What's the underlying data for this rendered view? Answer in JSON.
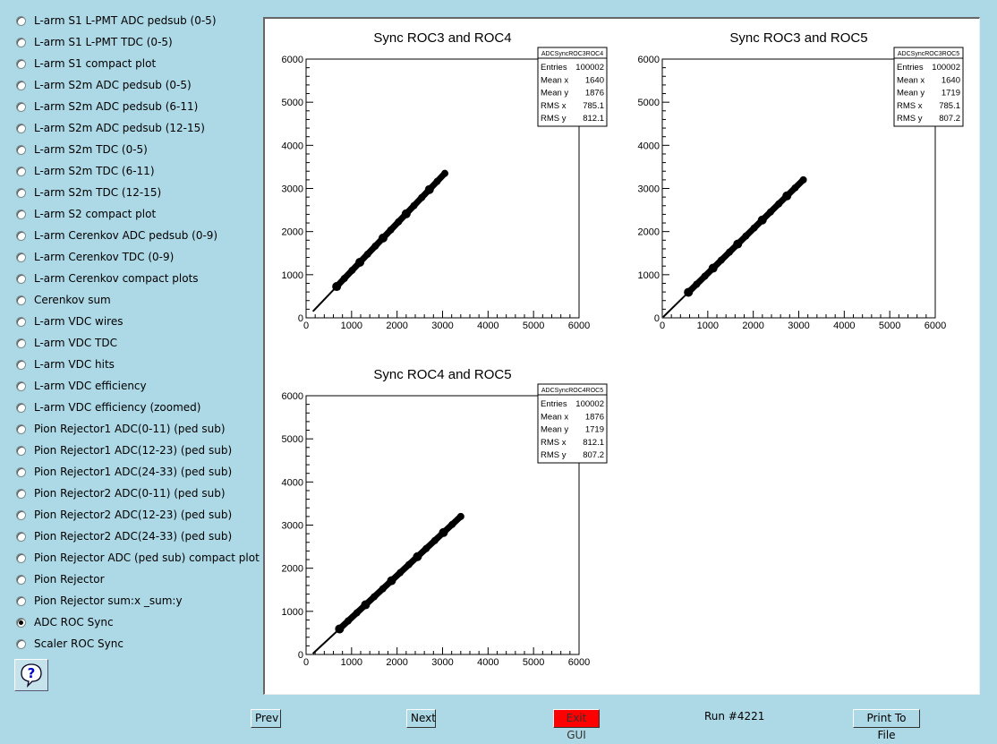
{
  "sidebar": {
    "items": [
      {
        "label": "L-arm S1 L-PMT ADC pedsub (0-5)",
        "checked": false
      },
      {
        "label": "L-arm S1 L-PMT TDC (0-5)",
        "checked": false
      },
      {
        "label": "L-arm S1 compact plot",
        "checked": false
      },
      {
        "label": "L-arm S2m ADC pedsub (0-5)",
        "checked": false
      },
      {
        "label": "L-arm S2m ADC pedsub (6-11)",
        "checked": false
      },
      {
        "label": "L-arm S2m ADC pedsub (12-15)",
        "checked": false
      },
      {
        "label": "L-arm S2m TDC (0-5)",
        "checked": false
      },
      {
        "label": "L-arm S2m TDC (6-11)",
        "checked": false
      },
      {
        "label": "L-arm S2m TDC (12-15)",
        "checked": false
      },
      {
        "label": "L-arm S2 compact plot",
        "checked": false
      },
      {
        "label": "L-arm Cerenkov ADC pedsub (0-9)",
        "checked": false
      },
      {
        "label": "L-arm Cerenkov TDC (0-9)",
        "checked": false
      },
      {
        "label": "L-arm Cerenkov compact plots",
        "checked": false
      },
      {
        "label": "Cerenkov sum",
        "checked": false
      },
      {
        "label": "L-arm VDC wires",
        "checked": false
      },
      {
        "label": "L-arm VDC TDC",
        "checked": false
      },
      {
        "label": "L-arm VDC hits",
        "checked": false
      },
      {
        "label": "L-arm VDC efficiency",
        "checked": false
      },
      {
        "label": "L-arm VDC efficiency (zoomed)",
        "checked": false
      },
      {
        "label": "Pion Rejector1 ADC(0-11) (ped sub)",
        "checked": false
      },
      {
        "label": "Pion Rejector1 ADC(12-23) (ped sub)",
        "checked": false
      },
      {
        "label": "Pion Rejector1 ADC(24-33) (ped sub)",
        "checked": false
      },
      {
        "label": "Pion Rejector2 ADC(0-11) (ped sub)",
        "checked": false
      },
      {
        "label": "Pion Rejector2 ADC(12-23) (ped sub)",
        "checked": false
      },
      {
        "label": "Pion Rejector2 ADC(24-33) (ped sub)",
        "checked": false
      },
      {
        "label": "Pion Rejector ADC (ped sub) compact plot",
        "checked": false
      },
      {
        "label": "Pion Rejector",
        "checked": false
      },
      {
        "label": "Pion Rejector sum:x _sum:y",
        "checked": false
      },
      {
        "label": "ADC ROC Sync",
        "checked": true
      },
      {
        "label": "Scaler ROC Sync",
        "checked": false
      }
    ],
    "help_icon": "question-mark-icon"
  },
  "footer": {
    "prev_label": "Prev",
    "next_label": "Next",
    "exit_label": "Exit GUI",
    "run_label": "Run #4221",
    "print_label": "Print To File",
    "exit_color": "#ff0000"
  },
  "chart_data": [
    {
      "type": "scatter",
      "title": "Sync ROC3 and ROC4",
      "xlim": [
        0,
        6000
      ],
      "ylim": [
        0,
        6000
      ],
      "xticks": [
        "0",
        "1000",
        "2000",
        "3000",
        "4000",
        "5000",
        "6000"
      ],
      "yticks": [
        "0",
        "1000",
        "2000",
        "3000",
        "4000",
        "5000",
        "6000"
      ],
      "series": [
        {
          "x": [
            150,
            3050
          ],
          "y": [
            150,
            3350
          ]
        }
      ],
      "stats": {
        "name": "ADCSyncROC3ROC4",
        "rows": [
          [
            "Entries",
            "100002"
          ],
          [
            "Mean x",
            "1640"
          ],
          [
            "Mean y",
            "1876"
          ],
          [
            "RMS x",
            "785.1"
          ],
          [
            "RMS y",
            "812.1"
          ]
        ]
      }
    },
    {
      "type": "scatter",
      "title": "Sync ROC3 and ROC5",
      "xlim": [
        0,
        6000
      ],
      "ylim": [
        0,
        6000
      ],
      "xticks": [
        "0",
        "1000",
        "2000",
        "3000",
        "4000",
        "5000",
        "6000"
      ],
      "yticks": [
        "0",
        "1000",
        "2000",
        "3000",
        "4000",
        "5000",
        "6000"
      ],
      "series": [
        {
          "x": [
            20,
            3100
          ],
          "y": [
            20,
            3200
          ]
        }
      ],
      "stats": {
        "name": "ADCSyncROC3ROC5",
        "rows": [
          [
            "Entries",
            "100002"
          ],
          [
            "Mean x",
            "1640"
          ],
          [
            "Mean y",
            "1719"
          ],
          [
            "RMS x",
            "785.1"
          ],
          [
            "RMS y",
            "807.2"
          ]
        ]
      }
    },
    {
      "type": "scatter",
      "title": "Sync ROC4 and ROC5",
      "xlim": [
        0,
        6000
      ],
      "ylim": [
        0,
        6000
      ],
      "xticks": [
        "0",
        "1000",
        "2000",
        "3000",
        "4000",
        "5000",
        "6000"
      ],
      "yticks": [
        "0",
        "1000",
        "2000",
        "3000",
        "4000",
        "5000",
        "6000"
      ],
      "series": [
        {
          "x": [
            150,
            3400
          ],
          "y": [
            20,
            3200
          ]
        }
      ],
      "stats": {
        "name": "ADCSyncROC4ROC5",
        "rows": [
          [
            "Entries",
            "100002"
          ],
          [
            "Mean x",
            "1876"
          ],
          [
            "Mean y",
            "1719"
          ],
          [
            "RMS x",
            "812.1"
          ],
          [
            "RMS y",
            "807.2"
          ]
        ]
      }
    }
  ]
}
